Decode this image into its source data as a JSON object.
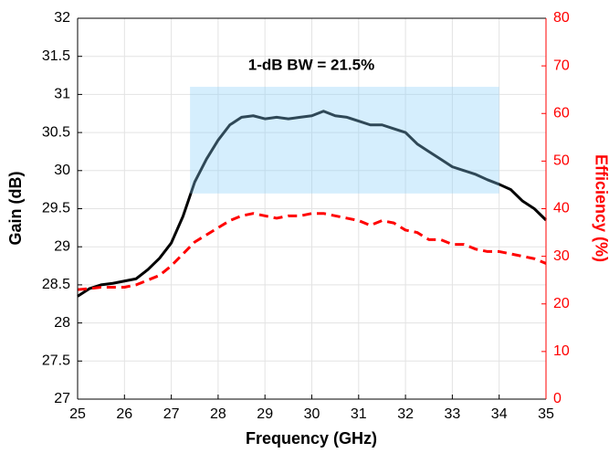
{
  "chart_data": {
    "type": "line",
    "annotation": "1-dB BW = 21.5%",
    "xlabel": "Frequency (GHz)",
    "ylabel": "Gain (dB)",
    "y2label": "Efficiency (%)",
    "x": [
      25,
      25.25,
      25.5,
      25.75,
      26,
      26.25,
      26.5,
      26.75,
      27,
      27.25,
      27.5,
      27.75,
      28,
      28.25,
      28.5,
      28.75,
      29,
      29.25,
      29.5,
      29.75,
      30,
      30.25,
      30.5,
      30.75,
      31,
      31.25,
      31.5,
      31.75,
      32,
      32.25,
      32.5,
      32.75,
      33,
      33.25,
      33.5,
      33.75,
      34,
      34.25,
      34.5,
      34.75,
      35
    ],
    "series": [
      {
        "name": "Gain",
        "color": "#000000",
        "dash": false,
        "axis": "y",
        "values": [
          28.35,
          28.45,
          28.5,
          28.52,
          28.55,
          28.58,
          28.7,
          28.85,
          29.05,
          29.4,
          29.85,
          30.15,
          30.4,
          30.6,
          30.7,
          30.72,
          30.68,
          30.7,
          30.68,
          30.7,
          30.72,
          30.78,
          30.72,
          30.7,
          30.65,
          30.6,
          30.6,
          30.55,
          30.5,
          30.35,
          30.25,
          30.15,
          30.05,
          30.0,
          29.95,
          29.88,
          29.82,
          29.75,
          29.6,
          29.5,
          29.35
        ]
      },
      {
        "name": "Efficiency",
        "color": "#ff0000",
        "dash": true,
        "axis": "y2",
        "values": [
          23,
          23.2,
          23.5,
          23.5,
          23.5,
          24,
          25,
          26,
          28,
          30.5,
          33,
          34.5,
          36,
          37.5,
          38.5,
          39,
          38.5,
          38,
          38.5,
          38.5,
          39,
          39,
          38.5,
          38,
          37.5,
          36.5,
          37.5,
          37,
          35.5,
          35,
          33.5,
          33.5,
          32.5,
          32.5,
          31.5,
          31,
          31,
          30.5,
          30,
          29.5,
          28.5
        ]
      }
    ],
    "highlight": {
      "x": [
        27.4,
        34
      ],
      "y": [
        29.7,
        31.1
      ],
      "color": "#87cefa"
    },
    "xlim": [
      25,
      35
    ],
    "xticks": [
      25,
      26,
      27,
      28,
      29,
      30,
      31,
      32,
      33,
      34,
      35
    ],
    "ylim": [
      27,
      32
    ],
    "yticks": [
      27,
      27.5,
      28,
      28.5,
      29,
      29.5,
      30,
      30.5,
      31,
      31.5,
      32
    ],
    "y2lim": [
      0,
      80
    ],
    "y2ticks": [
      0,
      10,
      20,
      30,
      40,
      50,
      60,
      70,
      80
    ],
    "y2color": "#ff0000",
    "grid": true
  }
}
